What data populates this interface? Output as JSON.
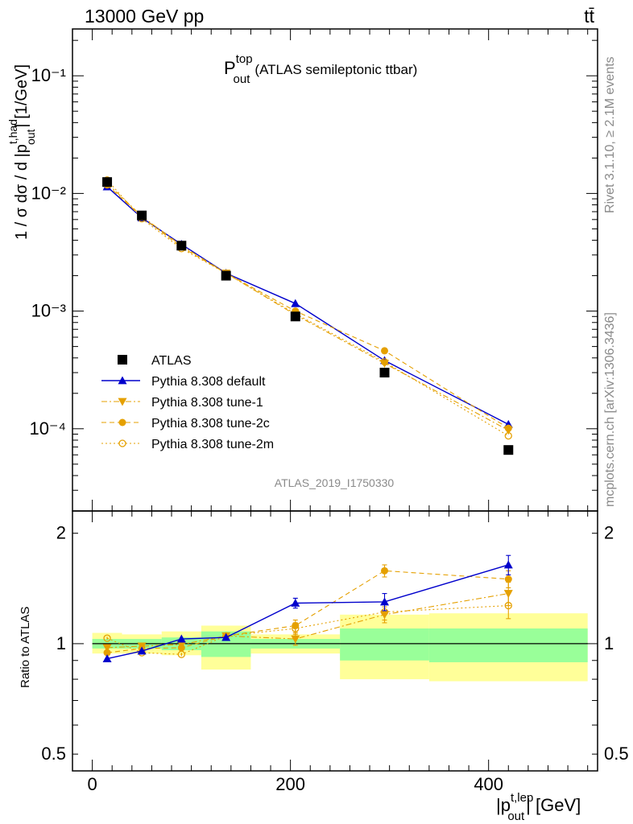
{
  "header": {
    "energy_label": "13000 GeV pp",
    "process_label": "tt̄"
  },
  "side": {
    "rivet": "Rivet 3.1.10, ≥ 2.1M events",
    "mcplots": "mcplots.cern.ch [arXiv:1306.3436]"
  },
  "title": {
    "main": "P",
    "sup": "top",
    "sub": "out",
    "rest": "(ATLAS semileptonic ttbar)"
  },
  "analysis_id": "ATLAS_2019_I1750330",
  "axes": {
    "ylabel_main": {
      "pre": "1 / σ dσ / d |p",
      "sup": "t,had",
      "sub": "out",
      "post": "| [1/GeV]"
    },
    "ylabel_ratio": "Ratio to ATLAS",
    "xlabel": {
      "pre": "|p",
      "sup": "t,lep",
      "sub": "out",
      "post": "| [GeV]"
    }
  },
  "colors": {
    "atlas": "#000000",
    "default": "#0000cc",
    "tune": "#e5a000",
    "band_inner": "#99ff99",
    "band_outer": "#ffff99"
  },
  "chart_data": [
    {
      "type": "scatter",
      "scale": "log",
      "xlim": [
        -20,
        510
      ],
      "ylim": [
        2e-05,
        0.25
      ],
      "yticks": [
        {
          "value": 0.1,
          "label": "10⁻¹"
        },
        {
          "value": 0.01,
          "label": "10⁻²"
        },
        {
          "value": 0.001,
          "label": "10⁻³"
        },
        {
          "value": 0.0001,
          "label": "10⁻⁴"
        }
      ],
      "legend_position": "bottom-left",
      "series": [
        {
          "name": "ATLAS",
          "marker": "square",
          "line": "none",
          "x": [
            15,
            50,
            90,
            135,
            205,
            295,
            420
          ],
          "y": [
            0.0125,
            0.0065,
            0.0036,
            0.002,
            0.0009,
            0.0003,
            6.6e-05
          ]
        },
        {
          "name": "Pythia 8.308 default",
          "marker": "triangle-up",
          "line": "solid",
          "x": [
            15,
            50,
            90,
            135,
            205,
            295,
            420
          ],
          "y": [
            0.0114,
            0.0062,
            0.0037,
            0.0021,
            0.00116,
            0.00038,
            0.000109
          ]
        },
        {
          "name": "Pythia 8.308 tune-1",
          "marker": "triangle-down",
          "line": "dashdot",
          "x": [
            15,
            50,
            90,
            135,
            205,
            295,
            420
          ],
          "y": [
            0.0122,
            0.0064,
            0.0036,
            0.0021,
            0.00093,
            0.00036,
            9.7e-05
          ]
        },
        {
          "name": "Pythia 8.308 tune-2c",
          "marker": "circle",
          "line": "dashed",
          "x": [
            15,
            50,
            90,
            135,
            205,
            295,
            420
          ],
          "y": [
            0.0118,
            0.0063,
            0.0035,
            0.0021,
            0.001,
            0.00046,
            0.000101
          ]
        },
        {
          "name": "Pythia 8.308 tune-2m",
          "marker": "circle-open",
          "line": "dotted",
          "x": [
            15,
            50,
            90,
            135,
            205,
            295,
            420
          ],
          "y": [
            0.013,
            0.0061,
            0.0034,
            0.0021,
            0.00095,
            0.00037,
            8.7e-05
          ]
        }
      ]
    },
    {
      "type": "scatter",
      "scale": "log",
      "xlim": [
        -20,
        510
      ],
      "ylim": [
        0.45,
        2.3
      ],
      "yticks": [
        {
          "value": 2,
          "label": "2"
        },
        {
          "value": 1,
          "label": "1"
        },
        {
          "value": 0.5,
          "label": "0.5"
        }
      ],
      "xticks": [
        {
          "value": 0,
          "label": "0"
        },
        {
          "value": 200,
          "label": "200"
        },
        {
          "value": 400,
          "label": "400"
        }
      ],
      "bands": [
        {
          "xlo": 0,
          "xhi": 30,
          "inner": [
            0.97,
            1.03
          ],
          "outer": [
            0.94,
            1.07
          ]
        },
        {
          "xlo": 30,
          "xhi": 70,
          "inner": [
            0.97,
            1.03
          ],
          "outer": [
            0.94,
            1.06
          ]
        },
        {
          "xlo": 70,
          "xhi": 110,
          "inner": [
            0.96,
            1.04
          ],
          "outer": [
            0.93,
            1.08
          ]
        },
        {
          "xlo": 110,
          "xhi": 160,
          "inner": [
            0.92,
            1.08
          ],
          "outer": [
            0.85,
            1.12
          ]
        },
        {
          "xlo": 160,
          "xhi": 250,
          "inner": [
            0.97,
            1.03
          ],
          "outer": [
            0.94,
            1.06
          ]
        },
        {
          "xlo": 250,
          "xhi": 340,
          "inner": [
            0.9,
            1.1
          ],
          "outer": [
            0.8,
            1.2
          ]
        },
        {
          "xlo": 340,
          "xhi": 500,
          "inner": [
            0.89,
            1.1
          ],
          "outer": [
            0.79,
            1.21
          ]
        }
      ],
      "series": [
        {
          "name": "Pythia 8.308 default",
          "marker": "triangle-up",
          "line": "solid",
          "x": [
            15,
            50,
            90,
            135,
            205,
            295,
            420
          ],
          "y": [
            0.91,
            0.955,
            1.03,
            1.04,
            1.29,
            1.3,
            1.64
          ],
          "yerr": [
            0.01,
            0.01,
            0.01,
            0.02,
            0.04,
            0.07,
            0.1
          ]
        },
        {
          "name": "Pythia 8.308 tune-1",
          "marker": "triangle-down",
          "line": "dashdot",
          "x": [
            15,
            50,
            90,
            135,
            205,
            295,
            420
          ],
          "y": [
            0.975,
            0.985,
            0.995,
            1.05,
            1.03,
            1.2,
            1.37
          ],
          "yerr": [
            0.01,
            0.01,
            0.01,
            0.02,
            0.04,
            0.06,
            0.1
          ]
        },
        {
          "name": "Pythia 8.308 tune-2c",
          "marker": "circle",
          "line": "dashed",
          "x": [
            15,
            50,
            90,
            135,
            205,
            295,
            420
          ],
          "y": [
            0.945,
            0.97,
            0.975,
            1.05,
            1.12,
            1.58,
            1.5
          ],
          "yerr": [
            0.01,
            0.01,
            0.01,
            0.02,
            0.04,
            0.06,
            0.08
          ]
        },
        {
          "name": "Pythia 8.308 tune-2m",
          "marker": "circle-open",
          "line": "dotted",
          "x": [
            15,
            50,
            90,
            135,
            205,
            295,
            420
          ],
          "y": [
            1.035,
            0.945,
            0.935,
            1.05,
            1.1,
            1.22,
            1.27
          ],
          "yerr": [
            0.01,
            0.01,
            0.01,
            0.02,
            0.04,
            0.06,
            0.1
          ]
        }
      ]
    }
  ]
}
